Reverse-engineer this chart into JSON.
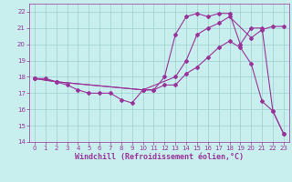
{
  "bg_color": "#c8eeee",
  "line_color": "#993399",
  "grid_color": "#9ecece",
  "xlim": [
    -0.5,
    23.5
  ],
  "ylim": [
    14,
    22.5
  ],
  "xticks": [
    0,
    1,
    2,
    3,
    4,
    5,
    6,
    7,
    8,
    9,
    10,
    11,
    12,
    13,
    14,
    15,
    16,
    17,
    18,
    19,
    20,
    21,
    22,
    23
  ],
  "yticks": [
    14,
    15,
    16,
    17,
    18,
    19,
    20,
    21,
    22
  ],
  "xlabel": "Windchill (Refroidissement éolien,°C)",
  "line1_x": [
    0,
    1,
    2,
    3,
    4,
    5,
    6,
    7,
    8,
    9,
    10,
    11,
    12,
    13,
    14,
    15,
    16,
    17,
    18,
    19,
    20,
    21,
    22,
    23
  ],
  "line1_y": [
    17.9,
    17.9,
    17.7,
    17.5,
    17.2,
    17.0,
    17.0,
    17.0,
    16.6,
    16.4,
    17.2,
    17.2,
    18.0,
    20.6,
    21.7,
    21.9,
    21.7,
    21.9,
    21.9,
    20.0,
    21.0,
    21.0,
    15.9,
    14.5
  ],
  "line2_x": [
    0,
    2,
    10,
    13,
    14,
    15,
    16,
    17,
    18,
    20,
    21,
    22,
    23
  ],
  "line2_y": [
    17.9,
    17.7,
    17.2,
    18.0,
    19.0,
    20.6,
    21.0,
    21.3,
    21.7,
    20.4,
    20.9,
    21.1,
    21.1
  ],
  "line3_x": [
    0,
    2,
    10,
    11,
    12,
    13,
    14,
    15,
    16,
    17,
    18,
    19,
    20,
    21,
    22,
    23
  ],
  "line3_y": [
    17.9,
    17.7,
    17.2,
    17.2,
    17.5,
    17.5,
    18.2,
    18.6,
    19.2,
    19.8,
    20.2,
    19.8,
    18.8,
    16.5,
    15.9,
    14.5
  ],
  "marker": "D",
  "markersize": 2.0,
  "linewidth": 0.8,
  "tick_fontsize": 5.0,
  "xlabel_fontsize": 6.0
}
